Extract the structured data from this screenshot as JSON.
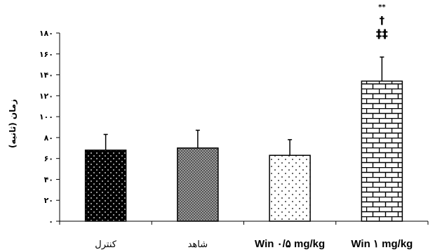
{
  "chart_data": {
    "type": "bar",
    "ylabel": "زمان (ثانیه)",
    "xlabel": "",
    "ylim": [
      0,
      180
    ],
    "yticks": [
      0,
      20,
      40,
      60,
      80,
      100,
      120,
      140,
      160,
      180
    ],
    "ytick_labels": [
      "٠",
      "٢٠",
      "۴٠",
      "۶٠",
      "٨٠",
      "١٠٠",
      "١٢٠",
      "١۴٠",
      "١۶٠",
      "١٨٠"
    ],
    "categories": [
      "کنترل",
      "شاهد",
      "Win ۰/۵ mg/kg",
      "Win ۱ mg/kg"
    ],
    "values": [
      68,
      70,
      63,
      134
    ],
    "errors": [
      15,
      17,
      15,
      23
    ],
    "fills": [
      "dotted-black",
      "crosshatch-gray",
      "dotted-white",
      "brick"
    ],
    "annotations": [
      {
        "category": "Win ۱ mg/kg",
        "lines": [
          "**",
          "†",
          "‡‡"
        ]
      }
    ],
    "grid": false
  }
}
